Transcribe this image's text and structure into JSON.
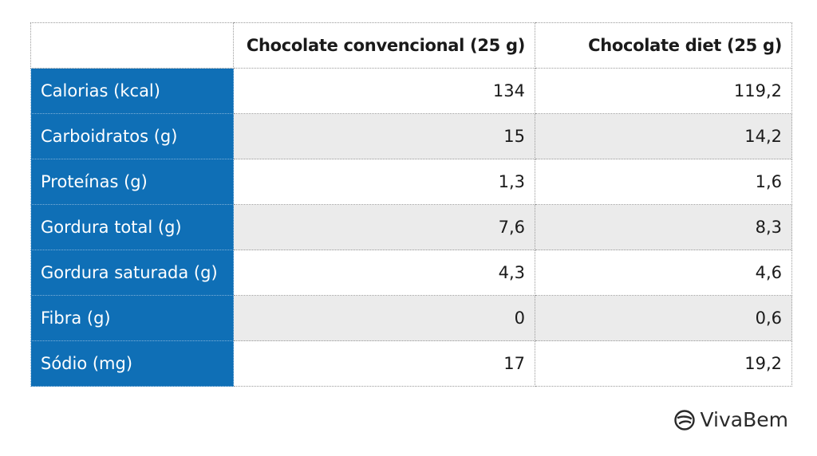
{
  "chart_data": {
    "type": "table",
    "columns": [
      "",
      "Chocolate convencional (25 g)",
      "Chocolate diet (25 g)"
    ],
    "rows": [
      {
        "label": "Calorias (kcal)",
        "values": [
          "134",
          "119,2"
        ]
      },
      {
        "label": "Carboidratos (g)",
        "values": [
          "15",
          "14,2"
        ]
      },
      {
        "label": "Proteínas (g)",
        "values": [
          "1,3",
          "1,6"
        ]
      },
      {
        "label": "Gordura total (g)",
        "values": [
          "7,6",
          "8,3"
        ]
      },
      {
        "label": "Gordura saturada (g)",
        "values": [
          "4,3",
          "4,6"
        ]
      },
      {
        "label": "Fibra (g)",
        "values": [
          "0",
          "0,6"
        ]
      },
      {
        "label": "Sódio (mg)",
        "values": [
          "17",
          "19,2"
        ]
      }
    ],
    "colors": {
      "label_background": "#0f6fb6",
      "label_text": "#ffffff",
      "stripe": "#ebebeb"
    }
  },
  "brand": {
    "name": "VivaBem",
    "icon": "vivabem-logo-icon"
  }
}
